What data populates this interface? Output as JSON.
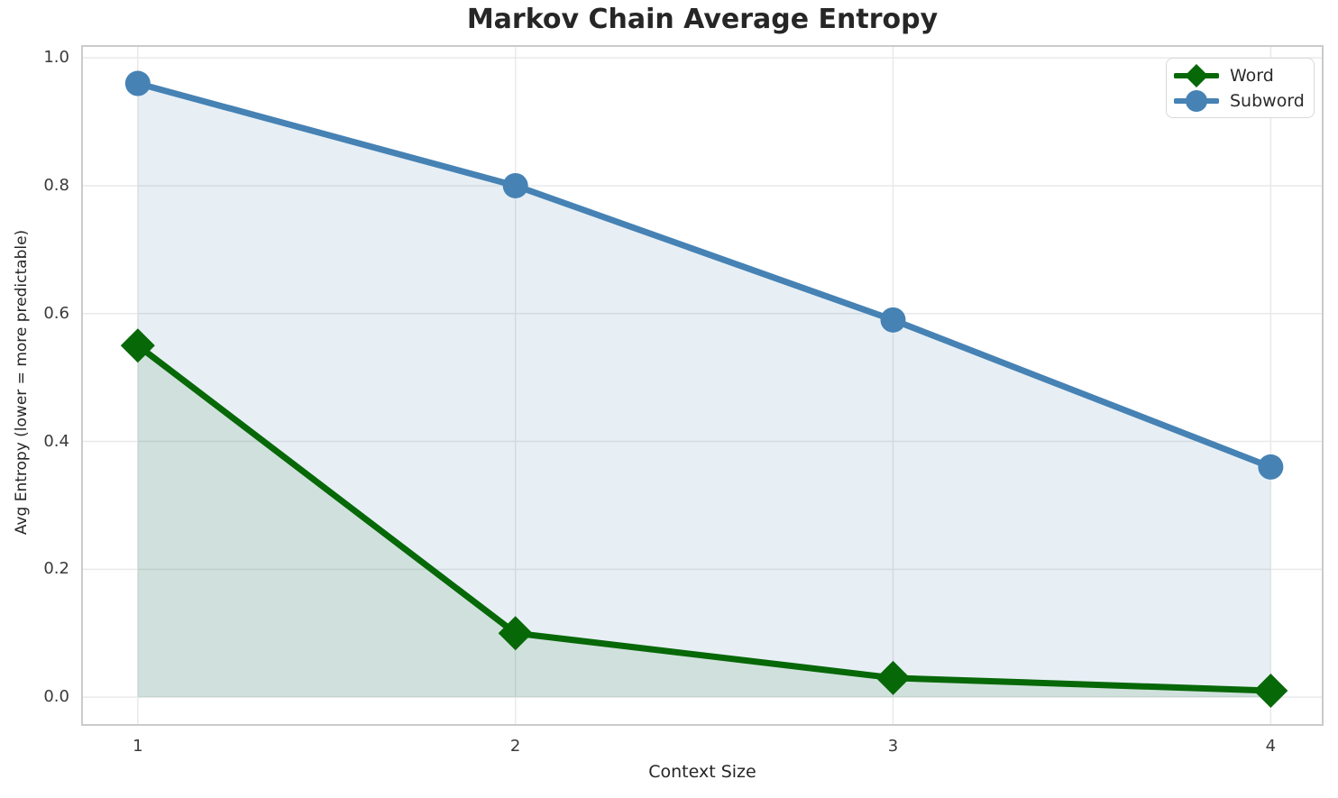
{
  "chart_data": {
    "type": "line",
    "title": "Markov Chain Average Entropy",
    "xlabel": "Context Size",
    "ylabel": "Avg Entropy (lower = more predictable)",
    "x": [
      1,
      2,
      3,
      4
    ],
    "series": [
      {
        "name": "Word",
        "values": [
          0.55,
          0.1,
          0.03,
          0.01
        ],
        "color": "#076807",
        "marker": "diamond",
        "fill_opacity": 0.1
      },
      {
        "name": "Subword",
        "values": [
          0.96,
          0.8,
          0.59,
          0.36
        ],
        "color": "#4682b4",
        "marker": "circle",
        "fill_opacity": 0.13
      }
    ],
    "xlim": [
      0.85,
      4.14
    ],
    "ylim": [
      -0.045,
      1.02
    ],
    "xticks": [
      1,
      2,
      3,
      4
    ],
    "xtick_labels": [
      "1",
      "2",
      "3",
      "4"
    ],
    "yticks": [
      0.0,
      0.2,
      0.4,
      0.6,
      0.8,
      1.0
    ],
    "ytick_labels": [
      "0.0",
      "0.2",
      "0.4",
      "0.6",
      "0.8",
      "1.0"
    ],
    "grid": true,
    "legend_position": "upper right",
    "style": {
      "grid_color": "#e9e9e9",
      "spine_color": "#cbcbcb",
      "line_width": 7,
      "circle_radius": 14,
      "diamond_half": 19
    }
  }
}
